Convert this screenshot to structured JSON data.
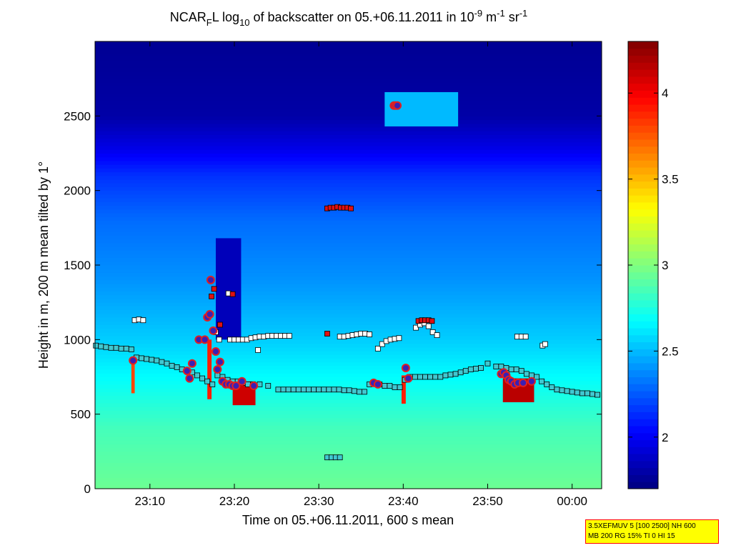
{
  "chart_data": {
    "type": "heatmap",
    "title": {
      "prefix": "NCAR",
      "sub_f": "F",
      "mid": "L log",
      "sub_10": "10",
      "mid2": " of backscatter on 05.+06.11.2011 in 10",
      "sup_exp": "-9",
      "unit_m": " m",
      "sup_m": "-1",
      "unit_sr": " sr",
      "sup_sr": "-1"
    },
    "xlabel": "Time on 05.+06.11.2011, 600 s mean",
    "ylabel": "Height in m, 200 m mean tilted by 1°",
    "x_range_min": [
      1383.5,
      1443.5
    ],
    "ylim": [
      0,
      3000
    ],
    "x_ticks": [
      {
        "value": 1390,
        "label": "23:10"
      },
      {
        "value": 1400,
        "label": "23:20"
      },
      {
        "value": 1410,
        "label": "23:30"
      },
      {
        "value": 1420,
        "label": "23:40"
      },
      {
        "value": 1430,
        "label": "23:50"
      },
      {
        "value": 1440,
        "label": "00:00"
      }
    ],
    "y_ticks": [
      0,
      500,
      1000,
      1500,
      2000,
      2500
    ],
    "colorbar": {
      "range": [
        1.7,
        4.3
      ],
      "ticks": [
        "2",
        "2.5",
        "3",
        "3.5",
        "4"
      ],
      "colormap": "jet"
    },
    "background_profile": [
      {
        "h": 0,
        "v": 2.95
      },
      {
        "h": 400,
        "v": 2.85
      },
      {
        "h": 700,
        "v": 2.7
      },
      {
        "h": 1000,
        "v": 2.55
      },
      {
        "h": 1400,
        "v": 2.4
      },
      {
        "h": 1800,
        "v": 2.3
      },
      {
        "h": 2100,
        "v": 2.15
      },
      {
        "h": 2300,
        "v": 1.95
      },
      {
        "h": 2500,
        "v": 1.8
      },
      {
        "h": 3000,
        "v": 1.75
      }
    ],
    "features": [
      {
        "name": "dark-clear-column",
        "t0": 1397.8,
        "t1": 1400.8,
        "h0": 1000,
        "h1": 1680,
        "v": 1.85
      },
      {
        "name": "upper-layer",
        "t0": 1417.8,
        "t1": 1426.5,
        "h0": 2430,
        "h1": 2660,
        "v": 2.5
      },
      {
        "name": "precip-a",
        "t0": 1396.8,
        "t1": 1397.3,
        "h0": 600,
        "h1": 1000,
        "v": 3.9
      },
      {
        "name": "precip-b",
        "t0": 1399.8,
        "t1": 1402.5,
        "h0": 560,
        "h1": 720,
        "v": 4.1
      },
      {
        "name": "precip-c",
        "t0": 1431.8,
        "t1": 1435.5,
        "h0": 580,
        "h1": 740,
        "v": 4.15
      },
      {
        "name": "precip-d",
        "t0": 1419.8,
        "t1": 1420.3,
        "h0": 570,
        "h1": 760,
        "v": 3.9
      },
      {
        "name": "precip-e",
        "t0": 1387.8,
        "t1": 1388.2,
        "h0": 640,
        "h1": 850,
        "v": 3.8
      }
    ],
    "series": [
      {
        "name": "cloud-base-cyan",
        "marker": "square",
        "color": "#40c8d0",
        "points": [
          [
            1383.6,
            960
          ],
          [
            1384.2,
            955
          ],
          [
            1384.8,
            950
          ],
          [
            1385.4,
            945
          ],
          [
            1386.0,
            945
          ],
          [
            1386.6,
            940
          ],
          [
            1387.2,
            940
          ],
          [
            1387.8,
            935
          ],
          [
            1388.4,
            880
          ],
          [
            1389.0,
            875
          ],
          [
            1389.6,
            870
          ],
          [
            1390.2,
            865
          ],
          [
            1390.8,
            860
          ],
          [
            1391.4,
            850
          ],
          [
            1392.0,
            840
          ],
          [
            1392.6,
            825
          ],
          [
            1393.2,
            815
          ],
          [
            1393.8,
            800
          ],
          [
            1394.4,
            790
          ],
          [
            1395.0,
            780
          ],
          [
            1395.6,
            760
          ],
          [
            1396.2,
            740
          ],
          [
            1396.8,
            720
          ],
          [
            1397.4,
            700
          ],
          [
            1398.0,
            760
          ],
          [
            1398.6,
            750
          ],
          [
            1399.2,
            730
          ],
          [
            1399.8,
            720
          ],
          [
            1400.4,
            720
          ],
          [
            1401.0,
            710
          ],
          [
            1401.6,
            700
          ],
          [
            1402.2,
            700
          ],
          [
            1403.0,
            700
          ],
          [
            1404.0,
            690
          ],
          [
            1405.2,
            665
          ],
          [
            1405.8,
            665
          ],
          [
            1406.4,
            665
          ],
          [
            1407.0,
            665
          ],
          [
            1407.6,
            665
          ],
          [
            1408.2,
            665
          ],
          [
            1408.8,
            665
          ],
          [
            1409.4,
            665
          ],
          [
            1410.0,
            665
          ],
          [
            1410.6,
            665
          ],
          [
            1411.2,
            665
          ],
          [
            1411.8,
            665
          ],
          [
            1412.4,
            665
          ],
          [
            1413.0,
            660
          ],
          [
            1413.6,
            660
          ],
          [
            1414.2,
            655
          ],
          [
            1414.8,
            650
          ],
          [
            1415.4,
            650
          ],
          [
            1416.0,
            700
          ],
          [
            1416.6,
            710
          ],
          [
            1417.2,
            700
          ],
          [
            1417.8,
            690
          ],
          [
            1418.4,
            690
          ],
          [
            1419.0,
            680
          ],
          [
            1419.6,
            680
          ],
          [
            1420.2,
            730
          ],
          [
            1420.8,
            750
          ],
          [
            1421.4,
            750
          ],
          [
            1422.0,
            750
          ],
          [
            1422.6,
            750
          ],
          [
            1423.2,
            750
          ],
          [
            1423.8,
            750
          ],
          [
            1424.4,
            750
          ],
          [
            1425.0,
            760
          ],
          [
            1425.6,
            765
          ],
          [
            1426.2,
            770
          ],
          [
            1426.8,
            780
          ],
          [
            1427.4,
            790
          ],
          [
            1428.0,
            800
          ],
          [
            1428.6,
            805
          ],
          [
            1429.2,
            810
          ],
          [
            1430.0,
            840
          ],
          [
            1431.0,
            820
          ],
          [
            1431.6,
            820
          ],
          [
            1432.2,
            810
          ],
          [
            1432.8,
            800
          ],
          [
            1433.4,
            800
          ],
          [
            1434.0,
            790
          ],
          [
            1434.6,
            770
          ],
          [
            1435.2,
            760
          ],
          [
            1435.8,
            750
          ],
          [
            1436.4,
            720
          ],
          [
            1437.0,
            700
          ],
          [
            1437.6,
            680
          ],
          [
            1438.2,
            665
          ],
          [
            1438.8,
            660
          ],
          [
            1439.4,
            655
          ],
          [
            1440.0,
            650
          ],
          [
            1440.6,
            645
          ],
          [
            1441.2,
            640
          ],
          [
            1441.8,
            640
          ],
          [
            1442.4,
            635
          ],
          [
            1443.0,
            630
          ]
        ]
      },
      {
        "name": "cloud-top-white",
        "marker": "square",
        "color": "#ffffff",
        "points": [
          [
            1388.2,
            1130
          ],
          [
            1388.7,
            1135
          ],
          [
            1389.2,
            1130
          ],
          [
            1399.5,
            1000
          ],
          [
            1400.0,
            1000
          ],
          [
            1400.5,
            1000
          ],
          [
            1401.0,
            1000
          ],
          [
            1401.5,
            1000
          ],
          [
            1402.0,
            1010
          ],
          [
            1402.5,
            1015
          ],
          [
            1403.0,
            1020
          ],
          [
            1403.5,
            1020
          ],
          [
            1404.0,
            1025
          ],
          [
            1404.5,
            1025
          ],
          [
            1405.0,
            1025
          ],
          [
            1405.5,
            1025
          ],
          [
            1406.0,
            1025
          ],
          [
            1406.5,
            1025
          ],
          [
            1412.5,
            1020
          ],
          [
            1413.0,
            1020
          ],
          [
            1413.5,
            1025
          ],
          [
            1414.0,
            1030
          ],
          [
            1414.5,
            1035
          ],
          [
            1415.0,
            1040
          ],
          [
            1415.5,
            1040
          ],
          [
            1416.0,
            1035
          ],
          [
            1417.0,
            940
          ],
          [
            1417.5,
            970
          ],
          [
            1418.0,
            990
          ],
          [
            1418.5,
            1000
          ],
          [
            1419.0,
            1005
          ],
          [
            1419.5,
            1010
          ],
          [
            1421.5,
            1080
          ],
          [
            1422.0,
            1100
          ],
          [
            1422.5,
            1110
          ],
          [
            1423.0,
            1090
          ],
          [
            1423.5,
            1050
          ],
          [
            1424.0,
            1030
          ],
          [
            1433.5,
            1020
          ],
          [
            1434.0,
            1020
          ],
          [
            1434.5,
            1020
          ],
          [
            1436.5,
            960
          ],
          [
            1436.8,
            970
          ],
          [
            1397.8,
            1050
          ],
          [
            1398.2,
            1000
          ],
          [
            1399.3,
            1310
          ],
          [
            1402.8,
            930
          ]
        ]
      },
      {
        "name": "red-markers",
        "marker": "square",
        "color": "#e01010",
        "points": [
          [
            1411.0,
            1880
          ],
          [
            1411.4,
            1885
          ],
          [
            1411.8,
            1885
          ],
          [
            1412.2,
            1890
          ],
          [
            1412.6,
            1885
          ],
          [
            1413.0,
            1885
          ],
          [
            1413.4,
            1885
          ],
          [
            1413.8,
            1880
          ],
          [
            1421.8,
            1125
          ],
          [
            1422.2,
            1130
          ],
          [
            1422.6,
            1130
          ],
          [
            1423.0,
            1130
          ],
          [
            1423.4,
            1125
          ],
          [
            1411.0,
            1040
          ],
          [
            1399.8,
            1305
          ],
          [
            1397.3,
            1290
          ],
          [
            1397.6,
            1340
          ],
          [
            1398.3,
            1100
          ]
        ]
      },
      {
        "name": "low-cyan",
        "marker": "square",
        "color": "#40c8d0",
        "points": [
          [
            1411.0,
            210
          ],
          [
            1411.5,
            210
          ],
          [
            1412.0,
            210
          ],
          [
            1412.5,
            210
          ]
        ]
      },
      {
        "name": "circle-markers",
        "marker": "circle",
        "color": "#e02020",
        "points": [
          [
            1388.0,
            860
          ],
          [
            1394.4,
            790
          ],
          [
            1394.7,
            740
          ],
          [
            1395.0,
            840
          ],
          [
            1395.8,
            1000
          ],
          [
            1396.5,
            1000
          ],
          [
            1396.8,
            1150
          ],
          [
            1397.1,
            1170
          ],
          [
            1397.2,
            1400
          ],
          [
            1397.5,
            1060
          ],
          [
            1397.8,
            920
          ],
          [
            1398.0,
            800
          ],
          [
            1398.3,
            850
          ],
          [
            1398.6,
            720
          ],
          [
            1399.0,
            700
          ],
          [
            1399.4,
            700
          ],
          [
            1399.8,
            690
          ],
          [
            1400.2,
            690
          ],
          [
            1400.9,
            720
          ],
          [
            1402.3,
            690
          ],
          [
            1418.9,
            2570
          ],
          [
            1419.1,
            2570
          ],
          [
            1419.3,
            2570
          ],
          [
            1416.5,
            710
          ],
          [
            1417.0,
            700
          ],
          [
            1420.3,
            810
          ],
          [
            1420.6,
            740
          ],
          [
            1431.6,
            770
          ],
          [
            1431.9,
            780
          ],
          [
            1432.2,
            760
          ],
          [
            1432.5,
            730
          ],
          [
            1432.8,
            720
          ],
          [
            1433.2,
            700
          ],
          [
            1433.6,
            710
          ],
          [
            1434.2,
            710
          ],
          [
            1435.2,
            720
          ]
        ]
      }
    ]
  },
  "annotation": {
    "line1": "3.5XEFMUV 5 [100 2500] NH 600",
    "line2": "MB 200 RG 15% TI 0 HI 15"
  }
}
